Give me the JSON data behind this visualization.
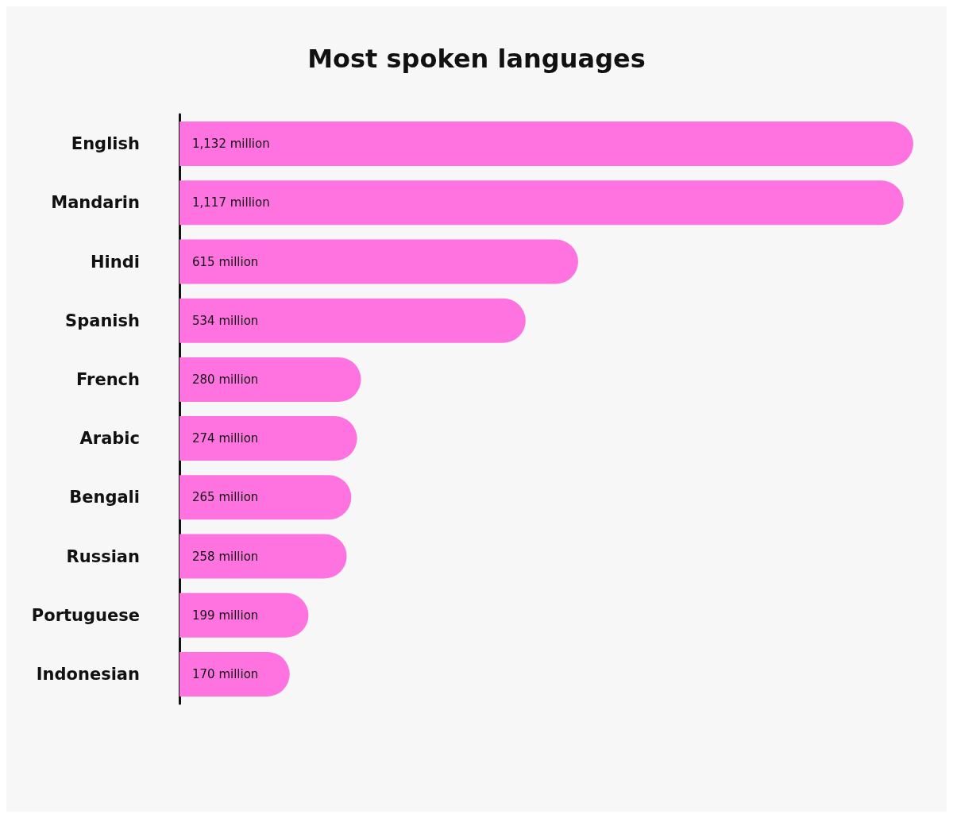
{
  "chart_data": {
    "type": "bar",
    "orientation": "horizontal",
    "title": "Most spoken languages",
    "categories": [
      "English",
      "Mandarin",
      "Hindi",
      "Spanish",
      "French",
      "Arabic",
      "Bengali",
      "Russian",
      "Portuguese",
      "Indonesian"
    ],
    "values": [
      1132,
      1117,
      615,
      534,
      280,
      274,
      265,
      258,
      199,
      170
    ],
    "value_labels": [
      "1,132 million",
      "1,117 million",
      "615 million",
      "534 million",
      "280 million",
      "274 million",
      "265 million",
      "258 million",
      "199 million",
      "170 million"
    ],
    "color": "#ff73e0"
  }
}
